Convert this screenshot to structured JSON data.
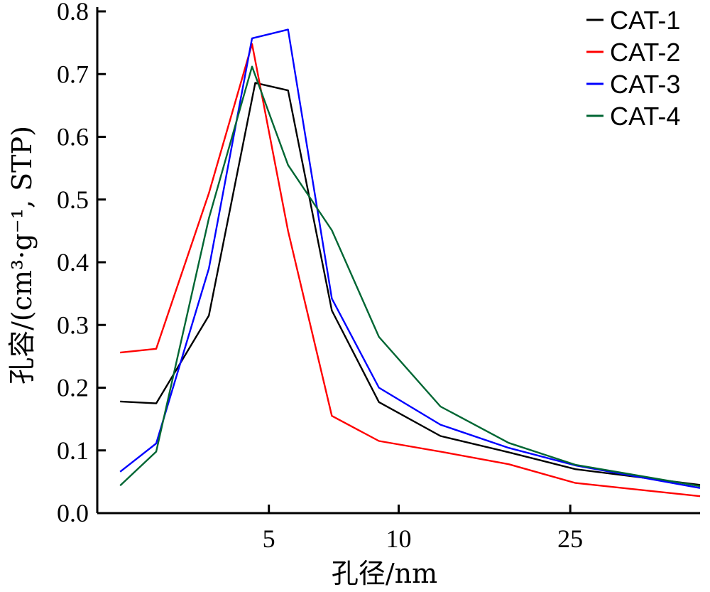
{
  "chart_data": {
    "type": "line",
    "xlabel": "孔径/nm",
    "ylabel": "孔容/(cm³·g⁻¹, STP)",
    "x_scale": "log",
    "xlim": [
      2.0,
      50
    ],
    "ylim": [
      0.0,
      0.8
    ],
    "x_ticks": [
      5,
      10,
      25
    ],
    "x_tick_labels": [
      "5",
      "10",
      "25"
    ],
    "y_ticks": [
      0.0,
      0.1,
      0.2,
      0.3,
      0.4,
      0.5,
      0.6,
      0.7,
      0.8
    ],
    "y_tick_labels": [
      "0.0",
      "0.1",
      "0.2",
      "0.3",
      "0.4",
      "0.5",
      "0.6",
      "0.7",
      "0.8"
    ],
    "grid": false,
    "legend_position": "top-right",
    "series": [
      {
        "name": "CAT-1",
        "color": "#000000",
        "points": [
          [
            2.26,
            0.178
          ],
          [
            2.74,
            0.175
          ],
          [
            3.63,
            0.315
          ],
          [
            4.65,
            0.686
          ],
          [
            5.54,
            0.674
          ],
          [
            7.0,
            0.323
          ],
          [
            9.0,
            0.177
          ],
          [
            12.5,
            0.123
          ],
          [
            18.0,
            0.097
          ],
          [
            25.7,
            0.07
          ],
          [
            50,
            0.045
          ]
        ]
      },
      {
        "name": "CAT-2",
        "color": "#ff0000",
        "points": [
          [
            2.26,
            0.256
          ],
          [
            2.74,
            0.262
          ],
          [
            3.63,
            0.51
          ],
          [
            4.57,
            0.748
          ],
          [
            5.54,
            0.45
          ],
          [
            7.0,
            0.155
          ],
          [
            9.0,
            0.115
          ],
          [
            12.5,
            0.098
          ],
          [
            18.0,
            0.078
          ],
          [
            25.7,
            0.048
          ],
          [
            50,
            0.027
          ]
        ]
      },
      {
        "name": "CAT-3",
        "color": "#0000ff",
        "points": [
          [
            2.26,
            0.066
          ],
          [
            2.74,
            0.111
          ],
          [
            3.63,
            0.39
          ],
          [
            4.57,
            0.757
          ],
          [
            5.54,
            0.771
          ],
          [
            7.0,
            0.342
          ],
          [
            9.0,
            0.2
          ],
          [
            12.5,
            0.141
          ],
          [
            18.0,
            0.104
          ],
          [
            25.7,
            0.076
          ],
          [
            50,
            0.04
          ]
        ]
      },
      {
        "name": "CAT-4",
        "color": "#006633",
        "points": [
          [
            2.26,
            0.044
          ],
          [
            2.74,
            0.098
          ],
          [
            3.63,
            0.47
          ],
          [
            4.57,
            0.712
          ],
          [
            5.54,
            0.555
          ],
          [
            7.0,
            0.451
          ],
          [
            9.0,
            0.281
          ],
          [
            12.5,
            0.17
          ],
          [
            18.0,
            0.112
          ],
          [
            25.7,
            0.077
          ],
          [
            50,
            0.043
          ]
        ]
      }
    ]
  }
}
